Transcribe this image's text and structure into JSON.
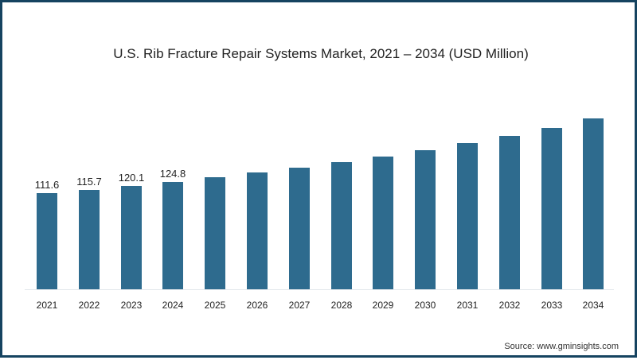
{
  "title": "U.S. Rib Fracture Repair Systems Market, 2021 – 2034 (USD Million)",
  "source": "Source: www.gminsights.com",
  "colors": {
    "bar": "#2e6b8e",
    "border": "#154360",
    "baseline": "#e3e8ec"
  },
  "chart_data": {
    "type": "bar",
    "title": "U.S. Rib Fracture Repair Systems Market, 2021 – 2034 (USD Million)",
    "xlabel": "",
    "ylabel": "USD Million",
    "categories": [
      "2021",
      "2022",
      "2023",
      "2024",
      "2025",
      "2026",
      "2027",
      "2028",
      "2029",
      "2030",
      "2031",
      "2032",
      "2033",
      "2034"
    ],
    "values": [
      111.6,
      115.7,
      120.1,
      124.8,
      130.1,
      135.6,
      141.1,
      147.6,
      154.1,
      161.4,
      169.7,
      178.0,
      187.3,
      198.3
    ],
    "data_labels": [
      "111.6",
      "115.7",
      "120.1",
      "124.8",
      "",
      "",
      "",
      "",
      "",
      "",
      "",
      "",
      "",
      ""
    ],
    "ylim": [
      0,
      220
    ],
    "grid": false,
    "legend": null,
    "source": "Source: www.gminsights.com"
  }
}
